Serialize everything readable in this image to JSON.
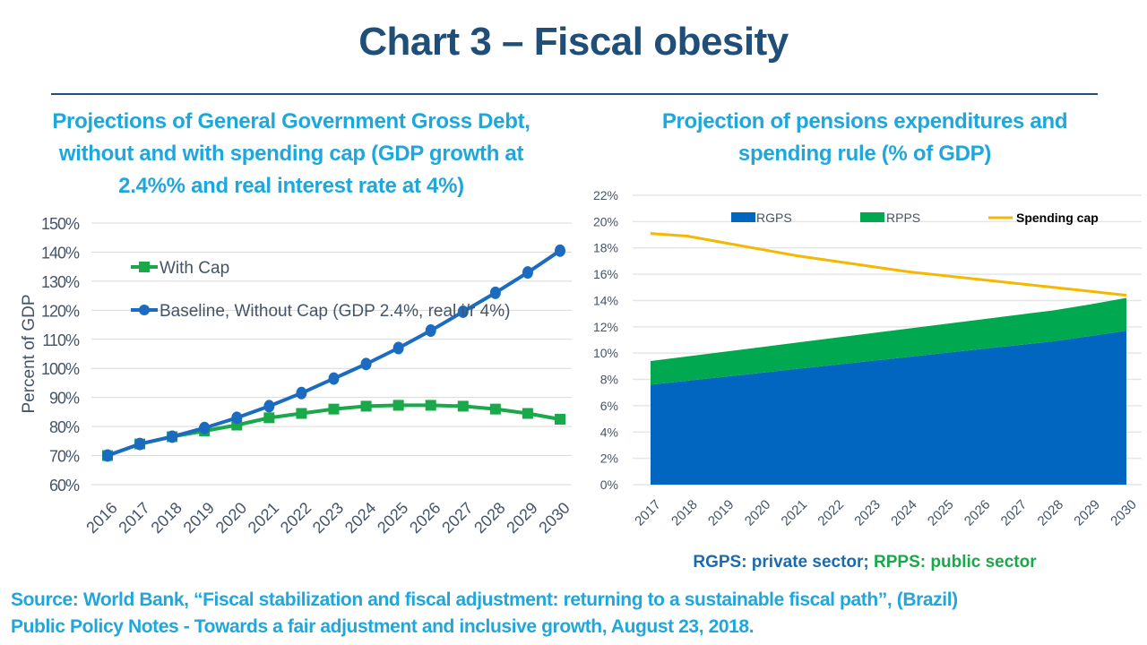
{
  "page": {
    "title": "Chart 3 – Fiscal obesity",
    "left_subtitle_lines": [
      "Projections of General Government Gross Debt,",
      "without and with spending cap (GDP growth at",
      "2.4%% and real interest rate at 4%)"
    ],
    "right_subtitle_lines": [
      "Projection of pensions expenditures and",
      "spending rule (% of GDP)"
    ],
    "legend_note": {
      "rgps": "RGPS: private sector;",
      "rpps": "RPPS: public sector"
    },
    "source_lines": [
      "Source: World Bank, “Fiscal stabilization and fiscal adjustment: returning to a sustainable fiscal path”, (Brazil)",
      "Public Policy Notes - Towards a fair adjustment and inclusive growth, August 23, 2018."
    ]
  },
  "colors": {
    "title": "#1f4e79",
    "subtitle": "#1fa7dc",
    "with_cap": "#19a84a",
    "baseline": "#1b6bc0",
    "rgps": "#0066bf",
    "rpps": "#00a94f",
    "spending_cap": "#f5b800",
    "grid": "#d9d9d9",
    "tick": "#44546a"
  },
  "chart_data": [
    {
      "type": "line",
      "title": "Projections of General Government Gross Debt, without and with spending cap (GDP growth at 2.4%% and real interest rate at 4%)",
      "xlabel": "",
      "ylabel": "Percent of GDP",
      "x": [
        "2016",
        "2017",
        "2018",
        "2019",
        "2020",
        "2021",
        "2022",
        "2023",
        "2024",
        "2025",
        "2026",
        "2027",
        "2028",
        "2029",
        "2030"
      ],
      "ylim": [
        60,
        150
      ],
      "yticks": [
        60,
        70,
        80,
        90,
        100,
        110,
        120,
        130,
        140,
        150
      ],
      "ytick_labels": [
        "60%",
        "70%",
        "80%",
        "90%",
        "100%",
        "110%",
        "120%",
        "130%",
        "140%",
        "150%"
      ],
      "grid": true,
      "legend_position": "top-left",
      "series": [
        {
          "name": "With Cap",
          "marker": "square",
          "values": [
            70,
            74,
            76.5,
            78.5,
            80.5,
            83,
            84.5,
            86,
            87,
            87.3,
            87.3,
            87,
            86,
            84.5,
            82.5
          ]
        },
        {
          "name": "Baseline, Without Cap (GDP 2.4%, real i/r 4%)",
          "marker": "circle",
          "values": [
            70,
            74,
            76.5,
            79.5,
            83,
            87,
            91.5,
            96.5,
            101.5,
            107,
            113,
            119.5,
            126,
            133,
            140.5
          ]
        }
      ]
    },
    {
      "type": "area",
      "title": "Projection of pensions expenditures and spending rule (% of GDP)",
      "xlabel": "",
      "ylabel": "",
      "x": [
        "2017",
        "2018",
        "2019",
        "2020",
        "2021",
        "2022",
        "2023",
        "2024",
        "2025",
        "2026",
        "2027",
        "2028",
        "2029",
        "2030"
      ],
      "ylim": [
        0,
        22
      ],
      "yticks": [
        0,
        2,
        4,
        6,
        8,
        10,
        12,
        14,
        16,
        18,
        20,
        22
      ],
      "ytick_labels": [
        "0%",
        "2%",
        "4%",
        "6%",
        "8%",
        "10%",
        "12%",
        "14%",
        "16%",
        "18%",
        "20%",
        "22%"
      ],
      "grid": true,
      "stacked": true,
      "legend_position": "top",
      "series": [
        {
          "name": "RGPS",
          "kind": "area",
          "values": [
            7.6,
            7.9,
            8.2,
            8.5,
            8.8,
            9.1,
            9.4,
            9.7,
            10.0,
            10.3,
            10.6,
            10.9,
            11.3,
            11.7
          ]
        },
        {
          "name": "RPPS",
          "kind": "area",
          "values": [
            1.8,
            1.85,
            1.9,
            1.95,
            2.0,
            2.05,
            2.1,
            2.15,
            2.2,
            2.25,
            2.3,
            2.35,
            2.4,
            2.5
          ]
        },
        {
          "name": "Spending cap",
          "kind": "line",
          "values": [
            19.1,
            18.9,
            18.4,
            17.9,
            17.4,
            17.0,
            16.6,
            16.2,
            15.9,
            15.6,
            15.3,
            15.0,
            14.7,
            14.4
          ]
        }
      ]
    }
  ]
}
